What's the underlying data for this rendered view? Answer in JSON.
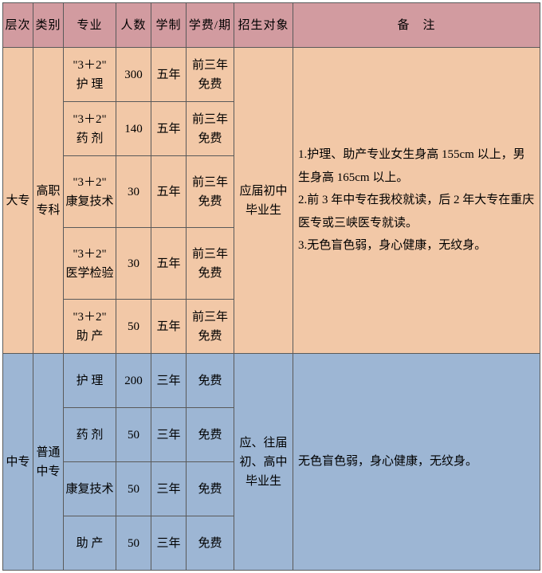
{
  "header": {
    "level": "层次",
    "category": "类别",
    "major": "专业",
    "count": "人数",
    "system": "学制",
    "fee": "学费/期",
    "target": "招生对象",
    "notes": "备　注"
  },
  "section1": {
    "level": "大专",
    "category": "高职专科",
    "target": "应届初中毕业生",
    "notes": "1.护理、助产专业女生身高 155cm 以上，男生身高 165cm 以上。\n2.前 3 年中专在我校就读，后 2 年大专在重庆医专或三峡医专就读。\n3.无色盲色弱，身心健康，无纹身。",
    "rows": [
      {
        "major": "\"3＋2\"\n护 理",
        "count": "300",
        "system": "五年",
        "fee": "前三年免费"
      },
      {
        "major": "\"3＋2\"\n药 剂",
        "count": "140",
        "system": "五年",
        "fee": "前三年免费"
      },
      {
        "major": "\"3＋2\"\n康复技术",
        "count": "30",
        "system": "五年",
        "fee": "前三年免费"
      },
      {
        "major": "\"3＋2\"\n医学检验",
        "count": "30",
        "system": "五年",
        "fee": "前三年免费"
      },
      {
        "major": "\"3＋2\"\n助 产",
        "count": "50",
        "system": "五年",
        "fee": "前三年免费"
      }
    ]
  },
  "section2": {
    "level": "中专",
    "category": "普通中专",
    "target": "应、往届初、高中毕业生",
    "notes": "无色盲色弱，身心健康，无纹身。",
    "rows": [
      {
        "major": "护 理",
        "count": "200",
        "system": "三年",
        "fee": "免费"
      },
      {
        "major": "药 剂",
        "count": "50",
        "system": "三年",
        "fee": "免费"
      },
      {
        "major": "康复技术",
        "count": "50",
        "system": "三年",
        "fee": "免费"
      },
      {
        "major": "助 产",
        "count": "50",
        "system": "三年",
        "fee": "免费"
      }
    ]
  },
  "colors": {
    "header_bg": "#d29ba0",
    "section1_bg": "#f2c8a7",
    "section2_bg": "#9db6d4",
    "border": "#5a5a5a",
    "text": "#000000"
  }
}
